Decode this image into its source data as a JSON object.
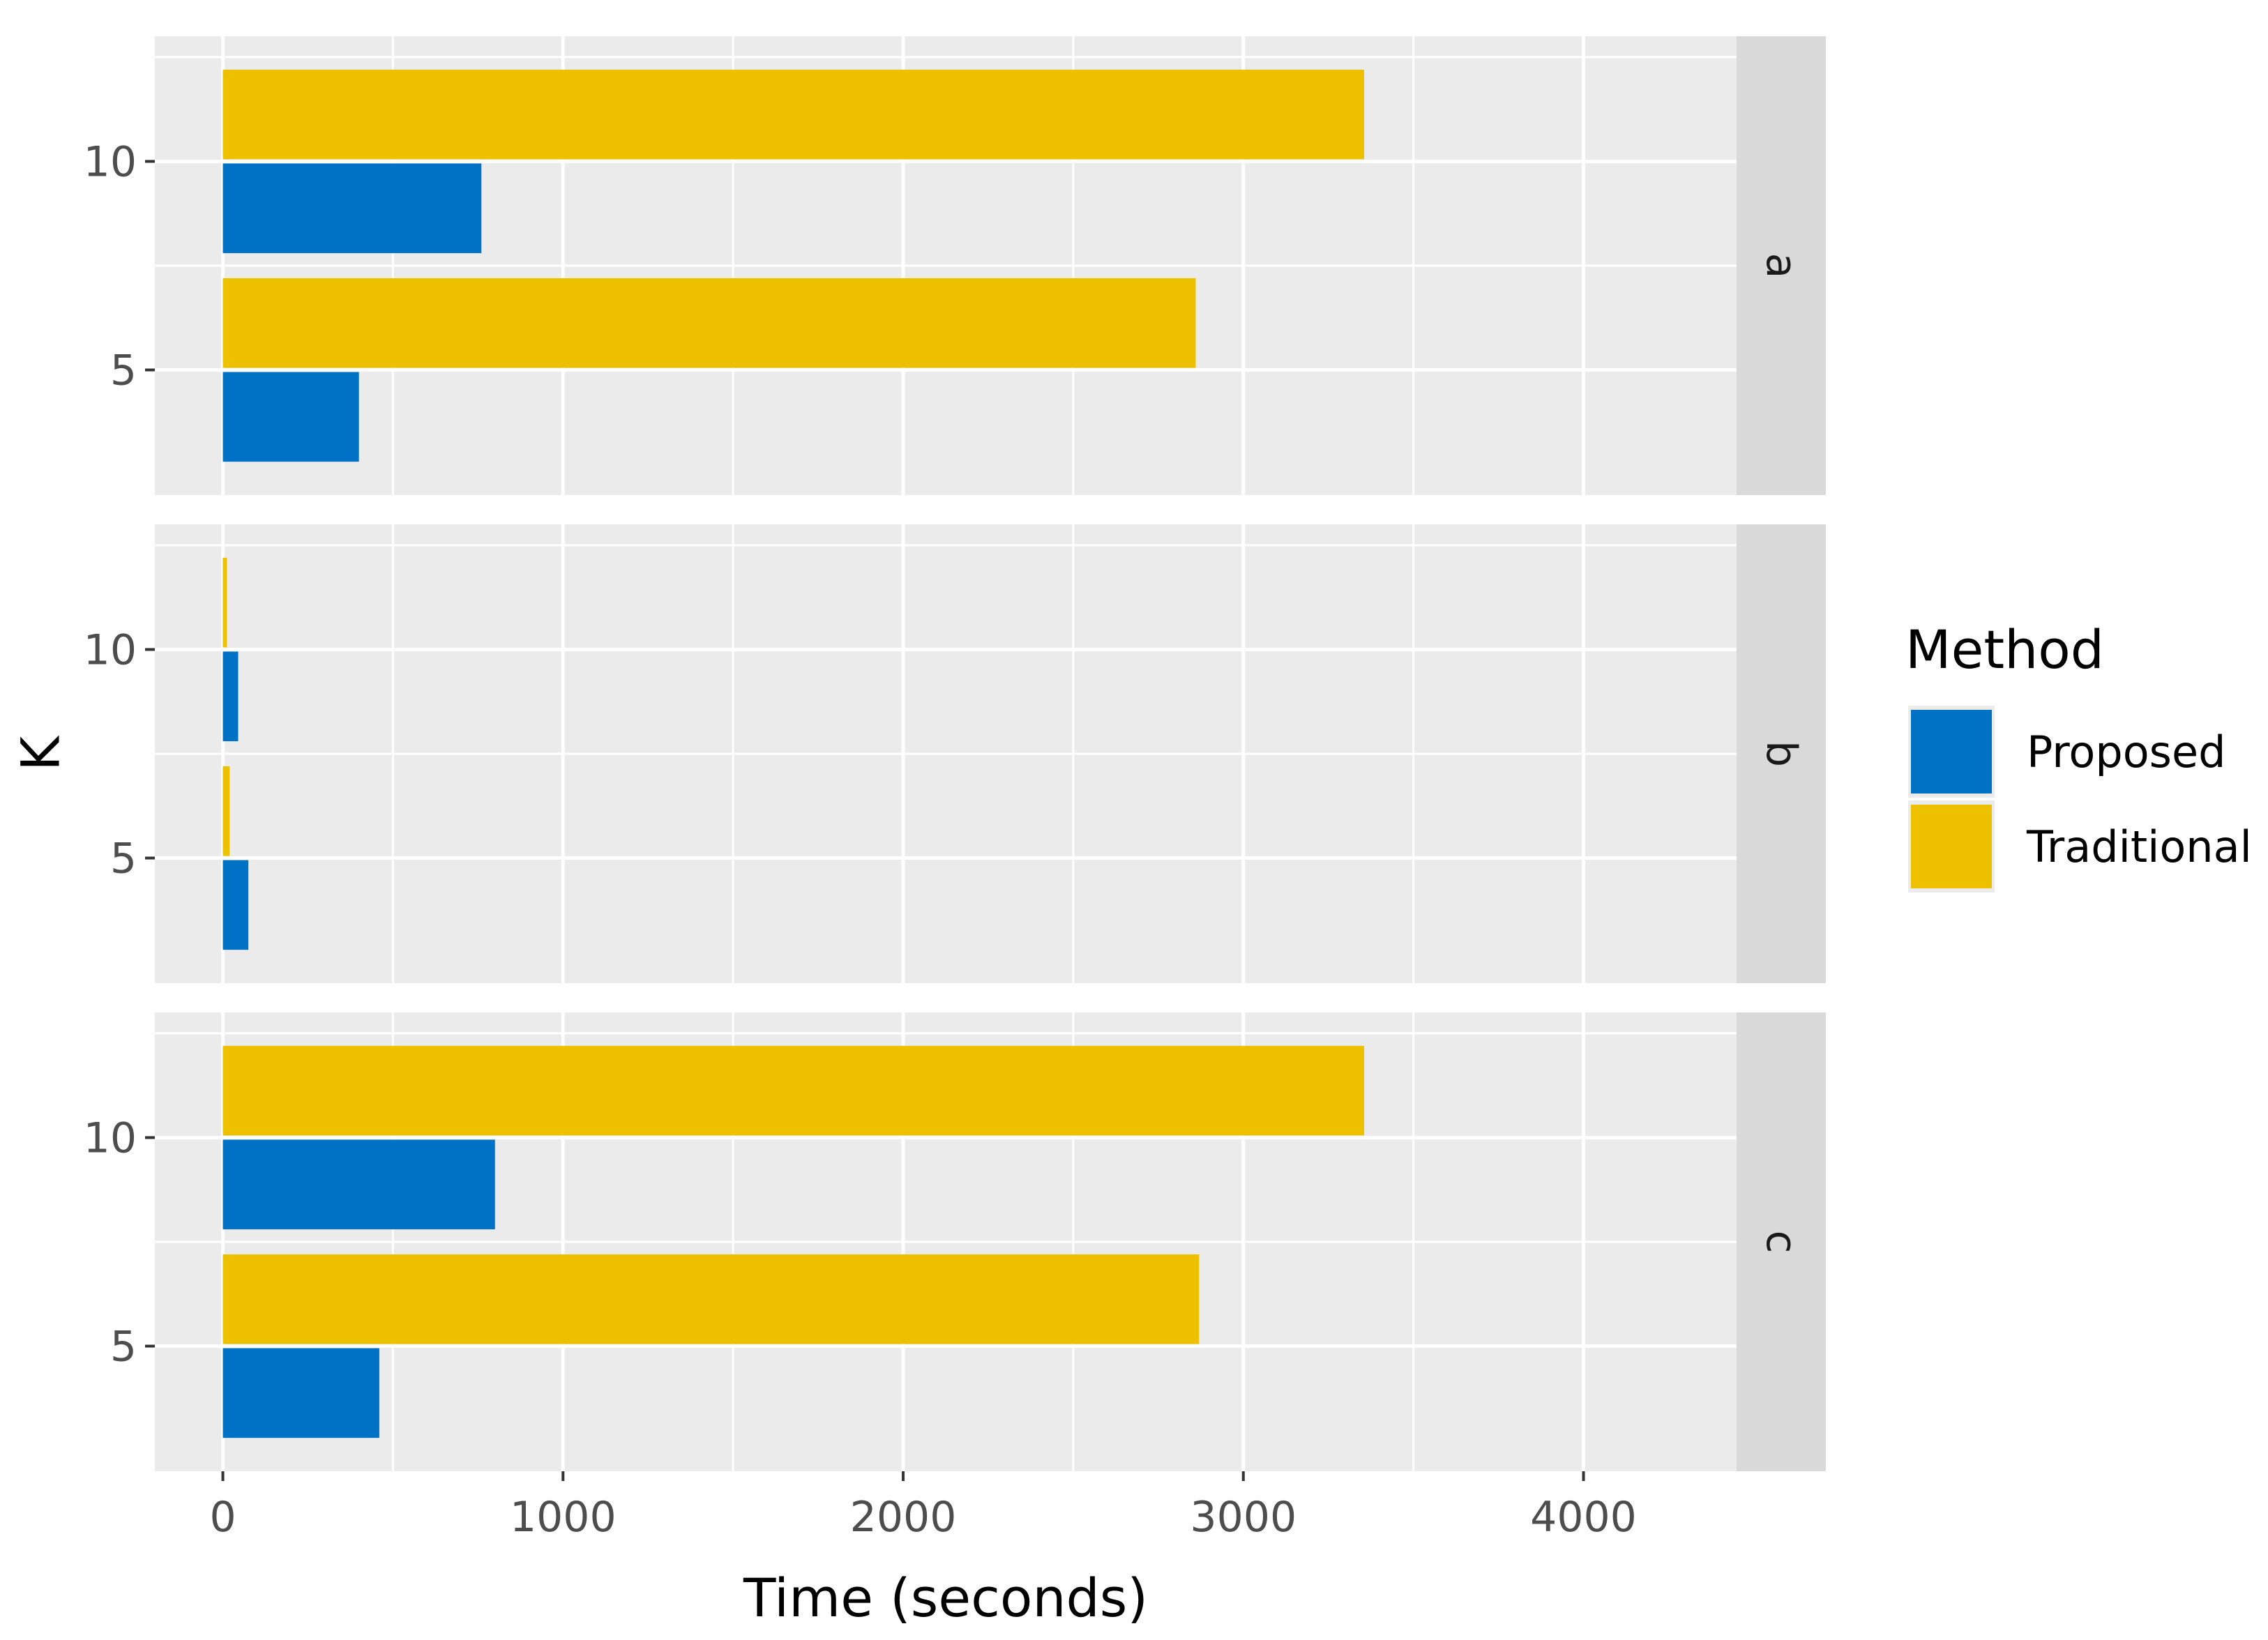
{
  "chart_data": {
    "type": "bar",
    "orientation": "horizontal",
    "xlabel": "Time (seconds)",
    "ylabel": "K",
    "xlim": [
      -200,
      4450
    ],
    "x_ticks": [
      0,
      1000,
      2000,
      3000,
      4000
    ],
    "x_tick_labels": [
      "0",
      "1000",
      "2000",
      "3000",
      "4000"
    ],
    "categories": [
      "5",
      "10"
    ],
    "grid": true,
    "legend": {
      "title": "Method",
      "position": "right",
      "entries": [
        {
          "label": "Proposed",
          "color": "#0072C6"
        },
        {
          "label": "Traditional",
          "color": "#EDC000"
        }
      ]
    },
    "panels": [
      {
        "label": "a",
        "series": [
          {
            "name": "Proposed",
            "values": [
              400,
              760
            ]
          },
          {
            "name": "Traditional",
            "values": [
              2860,
              3355
            ]
          }
        ]
      },
      {
        "label": "b",
        "series": [
          {
            "name": "Proposed",
            "values": [
              75,
              45
            ]
          },
          {
            "name": "Traditional",
            "values": [
              20,
              12
            ]
          }
        ]
      },
      {
        "label": "c",
        "series": [
          {
            "name": "Proposed",
            "values": [
              460,
              800
            ]
          },
          {
            "name": "Traditional",
            "values": [
              2870,
              3355
            ]
          }
        ]
      }
    ]
  },
  "colors": {
    "panel_background": "#EBEBEB",
    "grid": "#FFFFFF",
    "strip_background": "#D9D9D9"
  }
}
